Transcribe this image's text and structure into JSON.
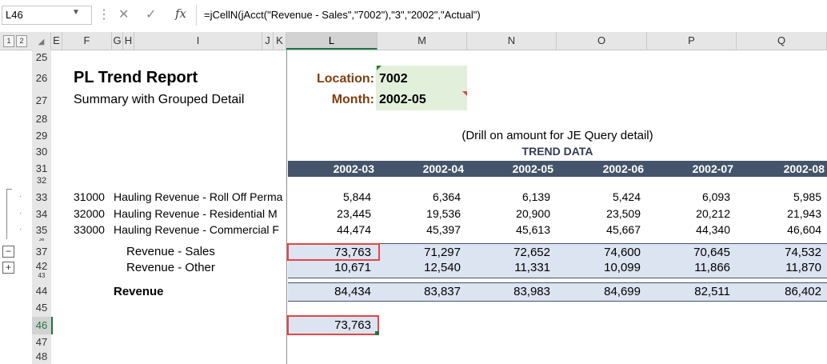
{
  "formula_bar": {
    "name_box": "L46",
    "formula": "=jCellN(jAcct(\"Revenue - Sales\",\"7002\"),\"3\",\"2002\",\"Actual\")"
  },
  "outline_levels": [
    "1",
    "2"
  ],
  "columns": [
    "E",
    "F",
    "G",
    "H",
    "I",
    "J",
    "K",
    "L",
    "M",
    "N",
    "O",
    "P",
    "Q"
  ],
  "selected_column": "L",
  "rows": [
    "25",
    "26",
    "27",
    "28",
    "29",
    "30",
    "31",
    "32",
    "33",
    "34",
    "35",
    "36",
    "37",
    "42",
    "43",
    "44",
    "45",
    "46",
    "47",
    "48"
  ],
  "report": {
    "title": "PL Trend Report",
    "subtitle": "Summary with Grouped Detail",
    "location_label": "Location:",
    "location_value": "7002",
    "month_label": "Month:",
    "month_value": "2002-05",
    "drill_note": "(Drill on amount for JE Query detail)",
    "trend_heading": "TREND DATA",
    "periods": [
      "2002-03",
      "2002-04",
      "2002-05",
      "2002-06",
      "2002-07",
      "2002-08"
    ],
    "detail_rows": [
      {
        "code": "31000",
        "name": "Hauling Revenue - Roll Off Perma",
        "values": [
          "5,844",
          "6,364",
          "6,139",
          "5,424",
          "6,093",
          "5,985"
        ]
      },
      {
        "code": "32000",
        "name": "Hauling Revenue - Residential M",
        "values": [
          "23,445",
          "19,536",
          "20,900",
          "23,509",
          "20,212",
          "21,943"
        ]
      },
      {
        "code": "33000",
        "name": "Hauling Revenue - Commercial F",
        "values": [
          "44,474",
          "45,397",
          "45,613",
          "45,667",
          "44,340",
          "46,604"
        ]
      }
    ],
    "sales": {
      "label": "Revenue - Sales",
      "values": [
        "73,763",
        "71,297",
        "72,652",
        "74,600",
        "70,645",
        "74,532"
      ]
    },
    "other": {
      "label": "Revenue - Other",
      "values": [
        "10,671",
        "12,540",
        "11,331",
        "10,099",
        "11,866",
        "11,870"
      ]
    },
    "revenue": {
      "label": "Revenue",
      "values": [
        "84,434",
        "83,837",
        "83,983",
        "84,699",
        "82,511",
        "86,402"
      ]
    },
    "check_value": "73,763"
  },
  "colors": {
    "header_band": "#44546a",
    "data_band": "#dce3f1",
    "input_fill": "#e2efda",
    "label_brown": "#843c0c",
    "select_red": "#e04848",
    "excel_green": "#217346"
  }
}
